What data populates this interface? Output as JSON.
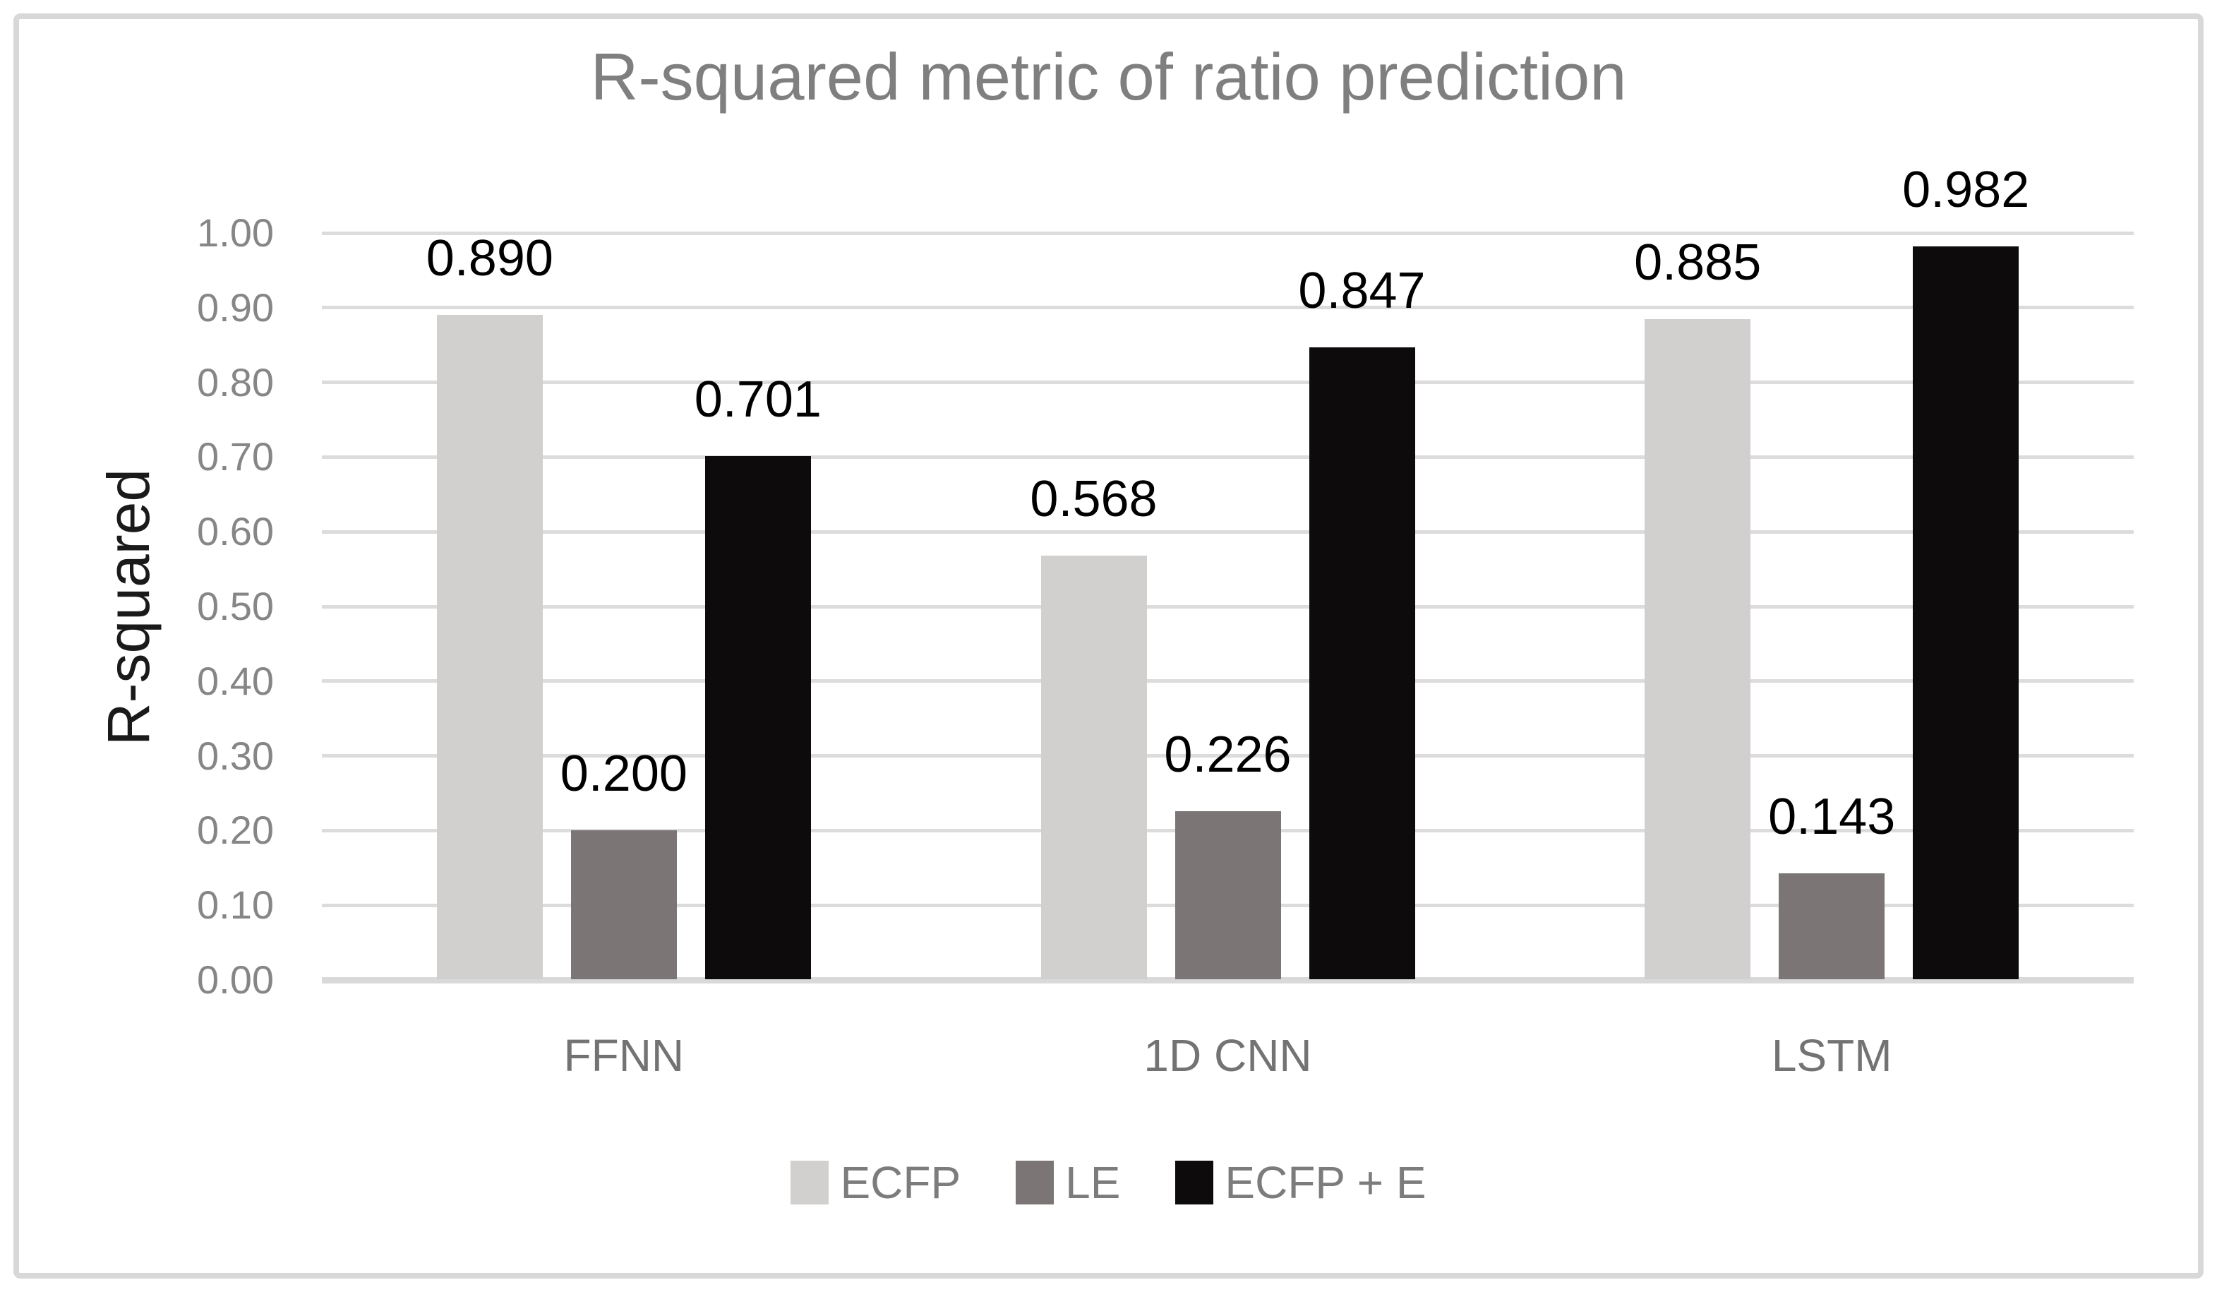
{
  "figure": {
    "background": "#ffffff",
    "border_color": "#d8d8d8"
  },
  "chart_data": {
    "type": "bar",
    "title": "R-squared metric of ratio prediction",
    "xlabel": "",
    "ylabel": "R-squared",
    "categories": [
      "FFNN",
      "1D CNN",
      "LSTM"
    ],
    "series": [
      {
        "name": "ECFP",
        "color": "#d2cfcf",
        "values": [
          0.89,
          0.568,
          0.885
        ],
        "labels": [
          "0.890",
          "0.568",
          "0.885"
        ]
      },
      {
        "name": "LE",
        "color": "#7b7575",
        "values": [
          0.2,
          0.226,
          0.143
        ],
        "labels": [
          "0.200",
          "0.226",
          "0.143"
        ]
      },
      {
        "name": "ECFP + E",
        "color": "#0d0b0b",
        "values": [
          0.701,
          0.847,
          0.982
        ],
        "labels": [
          "0.701",
          "0.847",
          "0.982"
        ]
      }
    ],
    "ylim": [
      0.0,
      1.0
    ],
    "yticks": [
      "0.00",
      "0.10",
      "0.20",
      "0.30",
      "0.40",
      "0.50",
      "0.60",
      "0.70",
      "0.80",
      "0.90",
      "1.00"
    ],
    "grid": "horizontal",
    "legend_position": "bottom",
    "text_colors": {
      "title": "#7f7f7f",
      "ticks": "#868686",
      "categories": "#737373",
      "legend": "#7c7c7c",
      "data_labels": "#000000",
      "axis_title": "#1a1a1a"
    },
    "line_colors": {
      "gridline": "#dcdcdc",
      "axis_line": "#d9d9d9"
    }
  }
}
